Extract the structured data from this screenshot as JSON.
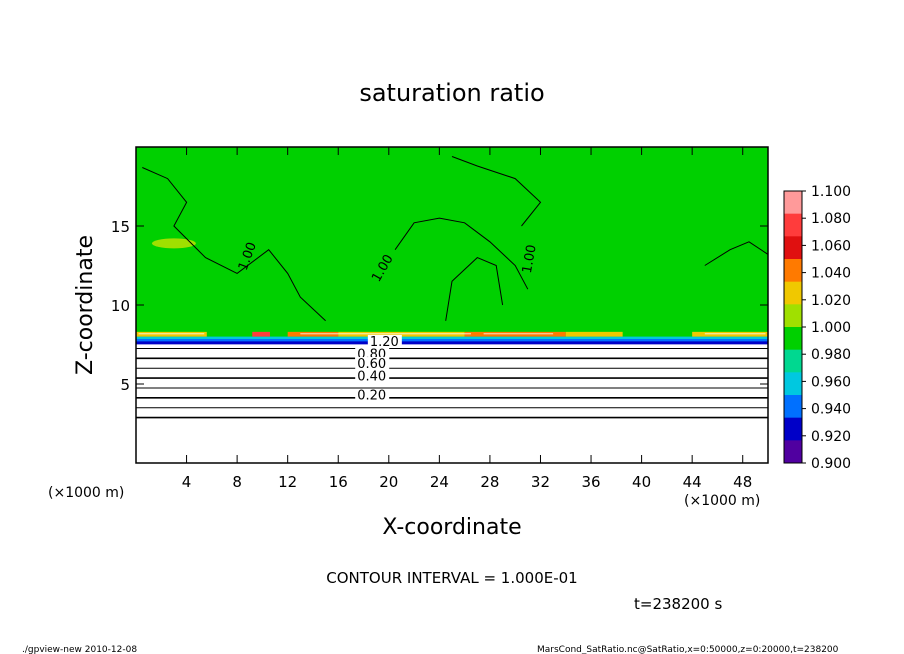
{
  "chart_data": {
    "type": "heatmap",
    "title": "saturation ratio",
    "xlabel": "X-coordinate",
    "ylabel": "Z-coordinate",
    "x_unit": "(×1000 m)",
    "y_unit": "(×1000 m)",
    "xlim": [
      0,
      50
    ],
    "ylim": [
      0,
      20
    ],
    "x_ticks": [
      4,
      8,
      12,
      16,
      20,
      24,
      28,
      32,
      36,
      40,
      44,
      48
    ],
    "y_ticks": [
      5,
      10,
      15
    ],
    "colorbar": {
      "levels": [
        1.1,
        1.08,
        1.06,
        1.04,
        1.02,
        1.0,
        0.98,
        0.96,
        0.94,
        0.92,
        0.9
      ],
      "labels": [
        "1.100",
        "1.080",
        "1.060",
        "1.040",
        "1.020",
        "1.000",
        "0.980",
        "0.960",
        "0.940",
        "0.920",
        "0.900"
      ],
      "colors": [
        "#ff9a9a",
        "#ff3c3c",
        "#e01010",
        "#ff7a00",
        "#f0c800",
        "#a0e000",
        "#00d000",
        "#00d890",
        "#00c8e0",
        "#0070ff",
        "#0000c8",
        "#5000a0"
      ]
    },
    "contour_labels": [
      "1.00",
      "1.00",
      "1.00",
      "1.20",
      "0.80",
      "0.60",
      "0.40",
      "0.20"
    ],
    "contour_interval_text": "CONTOUR INTERVAL = 1.000E-01",
    "time_text": "t=238200 s",
    "layers": {
      "background_value": 1.0,
      "cloud_base_z": 7.6,
      "cloud_top_z": 8.3,
      "dry_layer_values": [
        0.8,
        0.7,
        0.6,
        0.5,
        0.4,
        0.3,
        0.2,
        0.1
      ]
    }
  },
  "footer": {
    "left": "./gpview-new   2010-12-08",
    "right": "MarsCond_SatRatio.nc@SatRatio,x=0:50000,z=0:20000,t=238200"
  }
}
